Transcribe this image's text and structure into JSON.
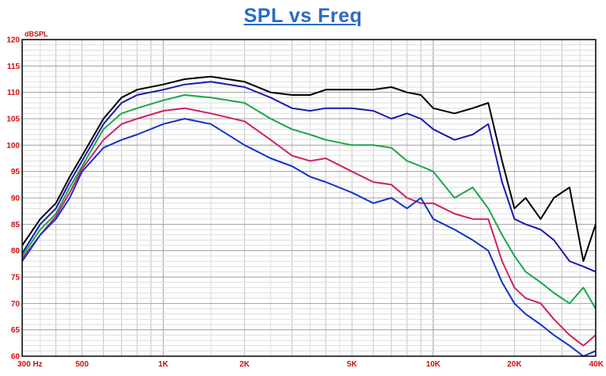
{
  "chart_data": {
    "type": "line",
    "title": "SPL vs Freq",
    "ylabel": "dBSPL",
    "x_scale": "log",
    "xlim": [
      300,
      40000
    ],
    "ylim": [
      60,
      120
    ],
    "grid": true,
    "y_ticks": [
      60,
      65,
      70,
      75,
      80,
      85,
      90,
      95,
      100,
      105,
      110,
      115,
      120
    ],
    "x_ticks": [
      {
        "value": 300,
        "label": "300  Hz"
      },
      {
        "value": 500,
        "label": "500"
      },
      {
        "value": 1000,
        "label": "1K"
      },
      {
        "value": 2000,
        "label": "2K"
      },
      {
        "value": 5000,
        "label": "5K"
      },
      {
        "value": 10000,
        "label": "10K"
      },
      {
        "value": 20000,
        "label": "20K"
      },
      {
        "value": 40000,
        "label": "40K"
      }
    ],
    "x": [
      300,
      350,
      400,
      450,
      500,
      600,
      700,
      800,
      1000,
      1200,
      1500,
      2000,
      2500,
      3000,
      3500,
      4000,
      5000,
      6000,
      7000,
      8000,
      9000,
      10000,
      12000,
      14000,
      16000,
      18000,
      20000,
      22000,
      25000,
      28000,
      32000,
      36000,
      40000
    ],
    "series": [
      {
        "color": "#000000",
        "values": [
          81,
          86,
          89,
          94,
          98,
          105,
          109,
          110.5,
          111.5,
          112.5,
          113,
          112,
          110,
          109.5,
          109.5,
          110.5,
          110.5,
          110.5,
          111,
          110,
          109.5,
          107,
          106,
          107,
          108,
          97,
          88,
          90,
          86,
          90,
          92,
          78,
          85
        ]
      },
      {
        "color": "#1a1ab0",
        "values": [
          79.5,
          85,
          88,
          93,
          97,
          104,
          108,
          109.5,
          110.5,
          111.5,
          112,
          111,
          109,
          107,
          106.5,
          107,
          107,
          106.5,
          105,
          106,
          105,
          103,
          101,
          102,
          104,
          93,
          86,
          85,
          84,
          82,
          78,
          77,
          76
        ]
      },
      {
        "color": "#1aa84a",
        "values": [
          79,
          84,
          87,
          92,
          96,
          103,
          106,
          107,
          108.5,
          109.5,
          109,
          108,
          105,
          103,
          102,
          101,
          100,
          100,
          99.5,
          97,
          96,
          95,
          90,
          92,
          88,
          83,
          79,
          76,
          74,
          72,
          70,
          73,
          69
        ]
      },
      {
        "color": "#cc2266",
        "values": [
          78.5,
          83,
          86.5,
          91,
          95.5,
          101,
          104,
          105,
          106.5,
          107,
          106,
          104.5,
          101,
          98,
          97,
          97.5,
          95,
          93,
          92.5,
          90,
          89,
          89,
          87,
          86,
          86,
          78,
          73,
          71,
          70,
          67,
          64,
          62,
          64
        ]
      },
      {
        "color": "#1133cc",
        "values": [
          78,
          83,
          86,
          90,
          95,
          99.5,
          101,
          102,
          104,
          105,
          104,
          100,
          97.5,
          96,
          94,
          93,
          91,
          89,
          90,
          88,
          90,
          86,
          84,
          82,
          80,
          74,
          70,
          68,
          66,
          64,
          62,
          60,
          61
        ]
      }
    ]
  }
}
